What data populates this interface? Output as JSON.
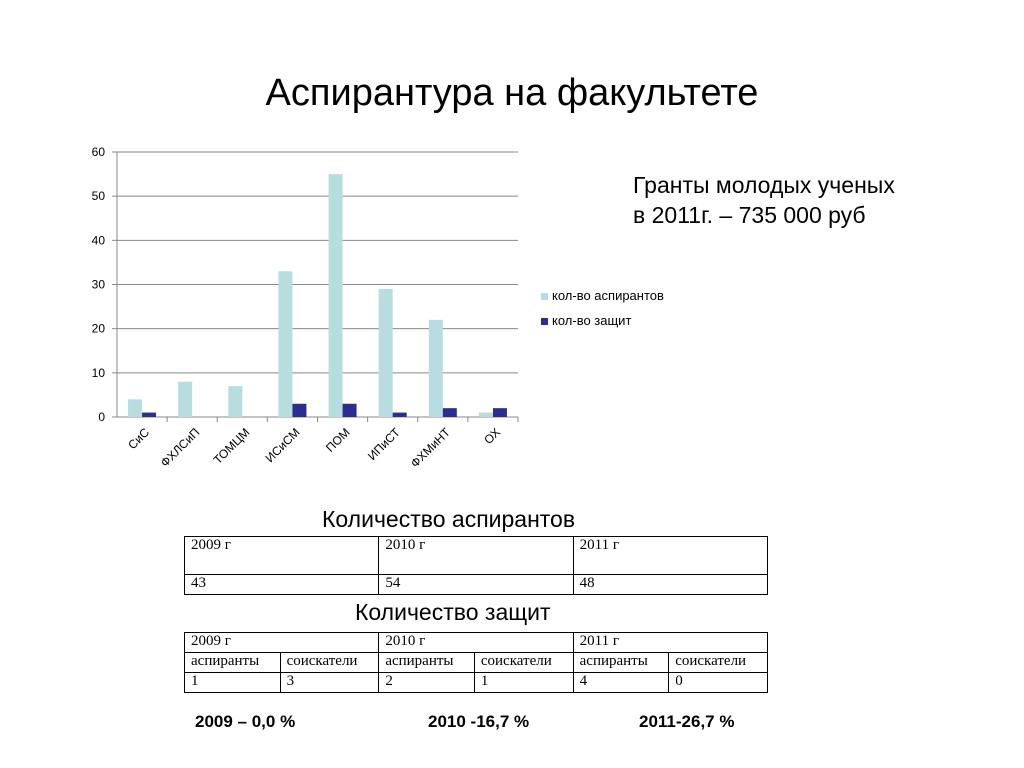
{
  "slide": {
    "title": "Аспирантура на факультете",
    "grant_line1": "Гранты молодых ученых",
    "grant_line2": "в 2011г. – 735 000 руб"
  },
  "chart_data": {
    "type": "bar",
    "categories": [
      "СиС",
      "ФХЛСиП",
      "ТОМЦМ",
      "ИСиСМ",
      "ПОМ",
      "ИПиСТ",
      "ФХМиНТ",
      "ОХ"
    ],
    "series": [
      {
        "name": "кол-во аспирантов",
        "values": [
          4,
          8,
          7,
          33,
          55,
          29,
          22,
          1
        ],
        "color": "#b7dde1"
      },
      {
        "name": "кол-во защит",
        "values": [
          1,
          0,
          0,
          3,
          3,
          1,
          2,
          2
        ],
        "color": "#2b2d8f"
      }
    ],
    "title": "",
    "xlabel": "",
    "ylabel": "",
    "ylim": [
      0,
      60
    ],
    "yticks": [
      0,
      10,
      20,
      30,
      40,
      50,
      60
    ],
    "grid": true,
    "legend": "right"
  },
  "table1": {
    "caption": "Количество аспирантов",
    "headers": [
      "2009 г",
      "2010 г",
      "2011 г"
    ],
    "values": [
      "43",
      "54",
      "48"
    ]
  },
  "table2": {
    "caption": "Количество защит",
    "years": [
      "2009 г",
      "2010 г",
      "2011 г"
    ],
    "subheaders": [
      "аспиранты",
      "соискатели",
      "аспиранты",
      "соискатели",
      "аспиранты",
      "соискатели"
    ],
    "values": [
      "1",
      "3",
      "2",
      "1",
      "4",
      "0"
    ]
  },
  "stats": {
    "y2009": "2009 – 0,0 %",
    "y2010": "2010 -16,7 %",
    "y2011": "2011-26,7 %"
  }
}
